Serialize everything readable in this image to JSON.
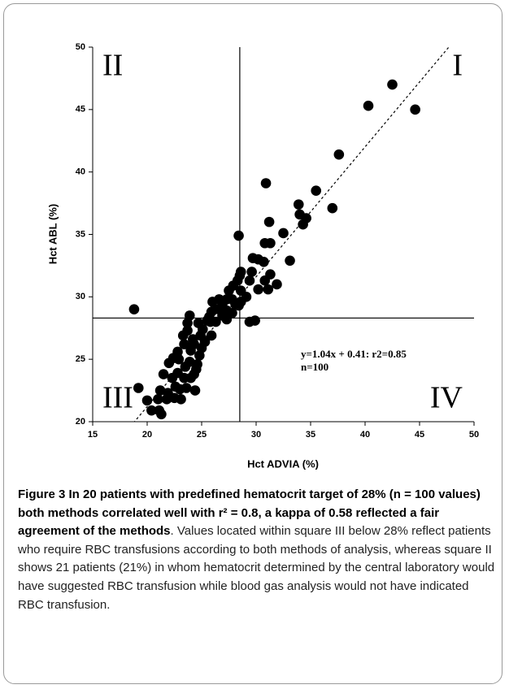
{
  "chart_data": {
    "type": "scatter",
    "xlabel": "Hct ADVIA (%)",
    "ylabel": "Hct ABL (%)",
    "xlim": [
      15,
      50
    ],
    "xticks": [
      15,
      20,
      25,
      30,
      35,
      40,
      45,
      50
    ],
    "ylim": [
      20,
      50
    ],
    "yticks": [
      20,
      25,
      30,
      35,
      40,
      45,
      50
    ],
    "color": "#000000",
    "x": [
      44.6,
      42.5,
      40.3,
      37.6,
      37.0,
      35.5,
      34.6,
      34.3,
      34.0,
      33.9,
      33.1,
      32.5,
      30.9,
      31.2,
      30.8,
      31.3,
      28.4,
      29.7,
      30.2,
      30.7,
      31.3,
      31.9,
      30.8,
      31.1,
      30.2,
      29.4,
      29.6,
      28.6,
      28.5,
      28.3,
      28.6,
      29.1,
      27.9,
      27.5,
      27.3,
      27.8,
      28.1,
      28.4,
      28.6,
      27.8,
      27.3,
      26.9,
      26.6,
      26.2,
      26.0,
      26.9,
      27.3,
      25.9,
      25.7,
      25.8,
      26.3,
      29.9,
      29.4,
      18.8,
      23.9,
      23.7,
      24.2,
      23.3,
      24.9,
      25.3,
      25.0,
      24.0,
      24.8,
      22.8,
      22.4,
      22.0,
      23.9,
      24.6,
      24.5,
      23.5,
      24.3,
      24.0,
      23.4,
      22.8,
      22.3,
      22.6,
      21.9,
      21.5,
      21.2,
      21.0,
      21.8,
      22.5,
      23.0,
      23.6,
      24.4,
      19.2,
      20.0,
      20.4,
      21.1,
      21.3,
      23.4,
      22.9,
      23.7,
      25.1,
      25.9,
      24.7,
      23.1,
      24.3,
      25.5,
      26.6
    ],
    "values": [
      45.0,
      47.0,
      45.3,
      41.4,
      37.1,
      38.5,
      36.3,
      35.8,
      36.6,
      37.4,
      32.9,
      35.1,
      39.1,
      36.0,
      34.3,
      34.3,
      34.9,
      33.1,
      33.0,
      32.8,
      31.8,
      31.0,
      31.3,
      30.6,
      30.6,
      31.3,
      32.0,
      32.0,
      31.7,
      31.3,
      30.5,
      30.0,
      30.9,
      30.5,
      29.8,
      29.8,
      29.4,
      29.3,
      29.6,
      28.7,
      28.9,
      29.4,
      29.8,
      29.0,
      29.6,
      28.5,
      28.2,
      28.8,
      28.4,
      28.0,
      28.0,
      28.1,
      28.0,
      29.0,
      28.5,
      27.3,
      26.6,
      26.9,
      26.9,
      26.4,
      25.9,
      25.7,
      25.3,
      25.6,
      25.1,
      24.7,
      24.8,
      24.6,
      24.2,
      24.4,
      23.8,
      23.5,
      23.5,
      23.9,
      23.5,
      22.8,
      22.3,
      23.8,
      22.5,
      21.8,
      21.8,
      21.9,
      22.6,
      22.7,
      22.5,
      22.7,
      21.7,
      20.9,
      20.9,
      20.6,
      26.2,
      25.0,
      27.9,
      27.4,
      26.9,
      27.9,
      21.8,
      26.2,
      28.1,
      29.0
    ],
    "vline": 28.5,
    "hline": 28.3,
    "fit": {
      "slope": 1.04,
      "intercept": 0.41
    },
    "quadrant_labels": [
      "I",
      "II",
      "III",
      "IV"
    ],
    "annotation": [
      "y=1.04x + 0.41:  r2=0.85",
      "n=100"
    ]
  },
  "caption": {
    "title": "Figure 3 In 20 patients with predefined hematocrit target of 28% (n = 100 values) both methods correlated well with r² = 0.8, a kappa of 0.58 reflected a fair agreement of the methods",
    "text": ". Values located within square III below 28% reflect patients who require RBC transfusions according to both methods of analysis, whereas square II shows 21 patients (21%) in whom hematocrit determined by the central laboratory would have suggested RBC transfusion while blood gas analysis would not have indicated RBC transfusion."
  }
}
